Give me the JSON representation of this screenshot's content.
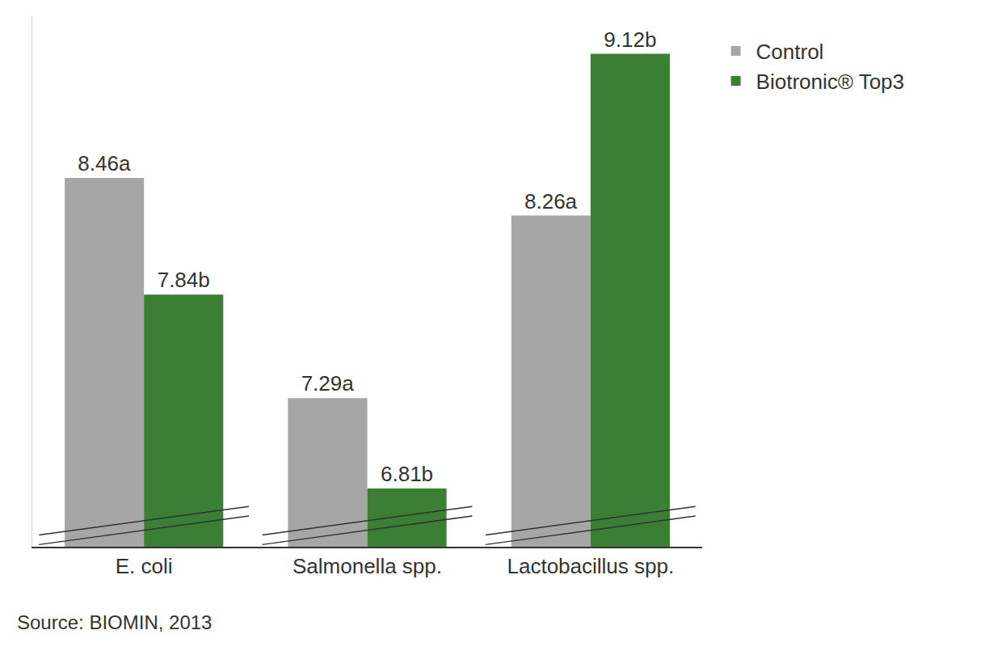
{
  "chart_data": {
    "type": "bar",
    "categories": [
      "E. coli",
      "Salmonella spp.",
      "Lactobacillus spp."
    ],
    "series": [
      {
        "name": "Control",
        "color": "#a6a6a6",
        "values": [
          8.46,
          7.29,
          8.26
        ],
        "value_labels": [
          "8.46a",
          "7.29a",
          "8.26a"
        ]
      },
      {
        "name": "Biotronic® Top3",
        "color": "#3b7f35",
        "values": [
          7.84,
          6.81,
          9.12
        ],
        "value_labels": [
          "7.84b",
          "6.81b",
          "9.12b"
        ]
      }
    ],
    "ylim": [
      6.5,
      9.32
    ],
    "yticks": [],
    "grid": false,
    "legend": "top right",
    "data_labels": true,
    "tick_labels": "x",
    "source": "Source: BIOMIN, 2013"
  }
}
